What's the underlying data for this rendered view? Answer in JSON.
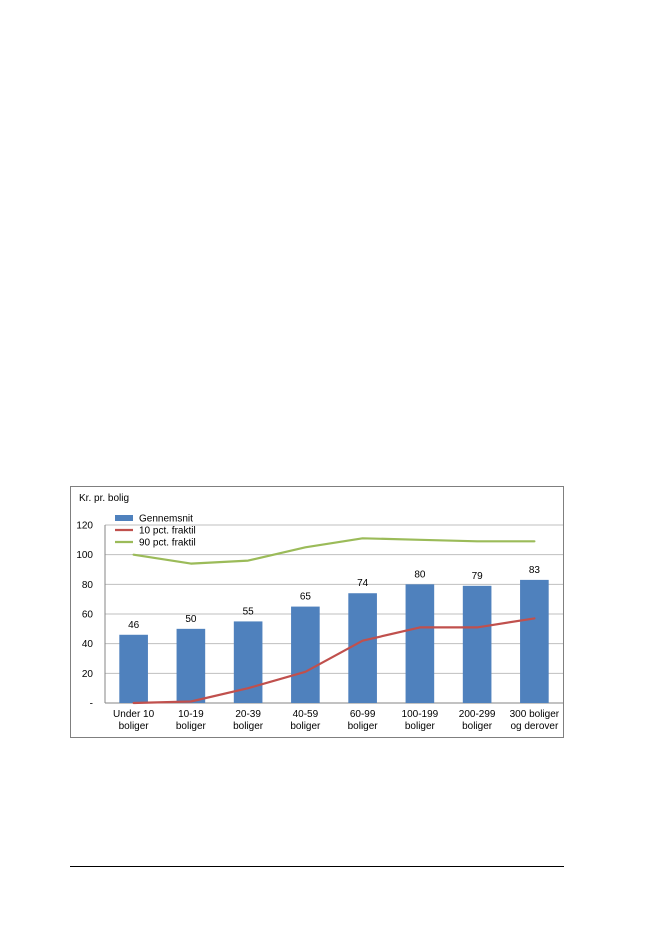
{
  "chart_data": {
    "type": "bar",
    "ylabel": "Kr. pr. bolig",
    "ylim": [
      0,
      120
    ],
    "yticks": [
      0,
      20,
      40,
      60,
      80,
      100,
      120
    ],
    "ytick_labels": [
      "-",
      "20",
      "40",
      "60",
      "80",
      "100",
      "120"
    ],
    "grid": true,
    "legend_position": "top-left",
    "categories": [
      [
        "Under 10",
        "boliger"
      ],
      [
        "10-19",
        "boliger"
      ],
      [
        "20-39",
        "boliger"
      ],
      [
        "40-59",
        "boliger"
      ],
      [
        "60-99",
        "boliger"
      ],
      [
        "100-199",
        "boliger"
      ],
      [
        "200-299",
        "boliger"
      ],
      [
        "300 boliger",
        "og derover"
      ]
    ],
    "series": [
      {
        "name": "Gennemsnit",
        "type": "bar",
        "color": "#4f81bd",
        "values": [
          46,
          50,
          55,
          65,
          74,
          80,
          79,
          83
        ],
        "data_labels": true
      },
      {
        "name": "10 pct. fraktil",
        "type": "line",
        "color": "#c0504d",
        "values": [
          0,
          1,
          10,
          21,
          42,
          51,
          51,
          57
        ]
      },
      {
        "name": "90 pct. fraktil",
        "type": "line",
        "color": "#9bbb59",
        "values": [
          100,
          94,
          96,
          105,
          111,
          110,
          109,
          109
        ]
      }
    ]
  }
}
